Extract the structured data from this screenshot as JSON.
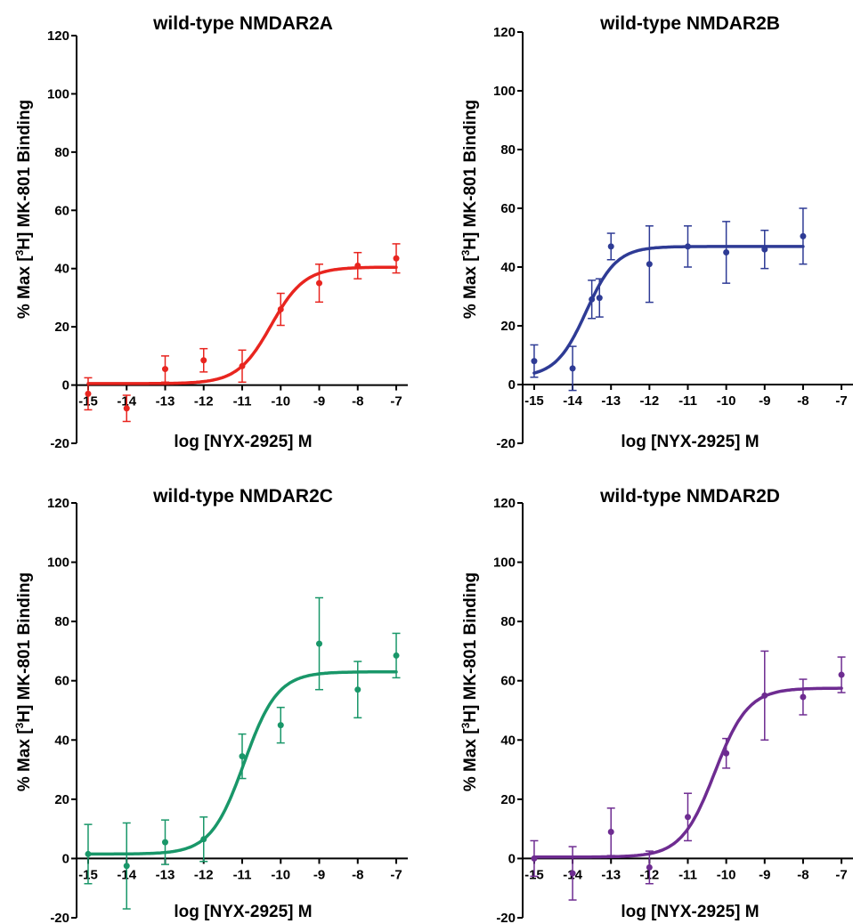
{
  "chart_data": [
    {
      "type": "scatter",
      "title": "wild-type NMDAR2A",
      "xlabel": "log [NYX-2925] M",
      "ylabel_pre": "% Max [",
      "ylabel_sup": "3",
      "ylabel_post": "H] MK-801 Binding",
      "xlim": [
        -15.3,
        -6.7
      ],
      "ylim": [
        -20,
        120
      ],
      "xticks": [
        -15,
        -14,
        -13,
        -12,
        -11,
        -10,
        -9,
        -8,
        -7
      ],
      "yticks": [
        -20,
        0,
        20,
        40,
        60,
        80,
        100,
        120
      ],
      "color": "#e8251f",
      "points": [
        {
          "x": -15,
          "y": -3,
          "err": 5.5
        },
        {
          "x": -14,
          "y": -8,
          "err": 4.5
        },
        {
          "x": -13,
          "y": 5.5,
          "err": 4.5
        },
        {
          "x": -12,
          "y": 8.5,
          "err": 4
        },
        {
          "x": -11,
          "y": 6.5,
          "err": 5.5
        },
        {
          "x": -10,
          "y": 26,
          "err": 5.5
        },
        {
          "x": -9,
          "y": 35,
          "err": 6.5
        },
        {
          "x": -8,
          "y": 41,
          "err": 4.5
        },
        {
          "x": -7,
          "y": 43.5,
          "err": 5
        }
      ],
      "fit": {
        "bottom": 0.5,
        "top": 40.5,
        "logec50": -10.25,
        "hill": 1.0,
        "xrange": [
          -15,
          -7
        ]
      }
    },
    {
      "type": "scatter",
      "title": "wild-type NMDAR2B",
      "xlabel": "log [NYX-2925] M",
      "ylabel_pre": "% Max [",
      "ylabel_sup": "3",
      "ylabel_post": "H] MK-801 Binding",
      "xlim": [
        -15.3,
        -6.7
      ],
      "ylim": [
        -20,
        120
      ],
      "xticks": [
        -15,
        -14,
        -13,
        -12,
        -11,
        -10,
        -9,
        -8,
        -7
      ],
      "yticks": [
        -20,
        0,
        20,
        40,
        60,
        80,
        100,
        120
      ],
      "color": "#2e3b95",
      "points": [
        {
          "x": -15,
          "y": 8,
          "err": 5.5
        },
        {
          "x": -14,
          "y": 5.5,
          "err": 7.5
        },
        {
          "x": -13.5,
          "y": 29,
          "err": 6.5
        },
        {
          "x": -13.3,
          "y": 29.5,
          "err": 6.5
        },
        {
          "x": -13,
          "y": 47,
          "err": 4.5
        },
        {
          "x": -12,
          "y": 41,
          "err": 13
        },
        {
          "x": -11,
          "y": 47,
          "err": 7
        },
        {
          "x": -10,
          "y": 45,
          "err": 10.5
        },
        {
          "x": -9,
          "y": 46,
          "err": 6.5
        },
        {
          "x": -8,
          "y": 50.5,
          "err": 9.5
        }
      ],
      "fit": {
        "bottom": 2.5,
        "top": 47,
        "logec50": -13.65,
        "hill": 1.1,
        "xrange": [
          -15,
          -8
        ]
      }
    },
    {
      "type": "scatter",
      "title": "wild-type NMDAR2C",
      "xlabel": "log [NYX-2925] M",
      "ylabel_pre": "% Max [",
      "ylabel_sup": "3",
      "ylabel_post": "H] MK-801 Binding",
      "xlim": [
        -15.3,
        -6.7
      ],
      "ylim": [
        -20,
        120
      ],
      "xticks": [
        -15,
        -14,
        -13,
        -12,
        -11,
        -10,
        -9,
        -8,
        -7
      ],
      "yticks": [
        -20,
        0,
        20,
        40,
        60,
        80,
        100,
        120
      ],
      "color": "#199769",
      "points": [
        {
          "x": -15,
          "y": 1.5,
          "err": 10
        },
        {
          "x": -14,
          "y": -2.5,
          "err": 14.5
        },
        {
          "x": -13,
          "y": 5.5,
          "err": 7.5
        },
        {
          "x": -12,
          "y": 6.5,
          "err": 7.5
        },
        {
          "x": -11,
          "y": 34.5,
          "err": 7.5
        },
        {
          "x": -10,
          "y": 45,
          "err": 6
        },
        {
          "x": -9,
          "y": 72.5,
          "err": 15.5
        },
        {
          "x": -8,
          "y": 57,
          "err": 9.5
        },
        {
          "x": -7,
          "y": 68.5,
          "err": 7.5
        }
      ],
      "fit": {
        "bottom": 1.5,
        "top": 63,
        "logec50": -10.95,
        "hill": 1.0,
        "xrange": [
          -15,
          -7
        ]
      }
    },
    {
      "type": "scatter",
      "title": "wild-type NMDAR2D",
      "xlabel": "log [NYX-2925] M",
      "ylabel_pre": "% Max [",
      "ylabel_sup": "3",
      "ylabel_post": "H] MK-801 Binding",
      "xlim": [
        -15.3,
        -6.7
      ],
      "ylim": [
        -20,
        120
      ],
      "xticks": [
        -15,
        -14,
        -13,
        -12,
        -11,
        -10,
        -9,
        -8,
        -7
      ],
      "yticks": [
        -20,
        0,
        20,
        40,
        60,
        80,
        100,
        120
      ],
      "color": "#6e2c91",
      "points": [
        {
          "x": -15,
          "y": 0,
          "err": 6
        },
        {
          "x": -14,
          "y": -5,
          "err": 9
        },
        {
          "x": -13,
          "y": 9,
          "err": 8
        },
        {
          "x": -12,
          "y": -3,
          "err": 5.5
        },
        {
          "x": -11,
          "y": 14,
          "err": 8
        },
        {
          "x": -10,
          "y": 35.5,
          "err": 5
        },
        {
          "x": -9,
          "y": 55,
          "err": 15
        },
        {
          "x": -8,
          "y": 54.5,
          "err": 6
        },
        {
          "x": -7,
          "y": 62,
          "err": 6
        }
      ],
      "fit": {
        "bottom": 0.5,
        "top": 57.5,
        "logec50": -10.3,
        "hill": 1.0,
        "xrange": [
          -15,
          -7
        ]
      }
    }
  ]
}
